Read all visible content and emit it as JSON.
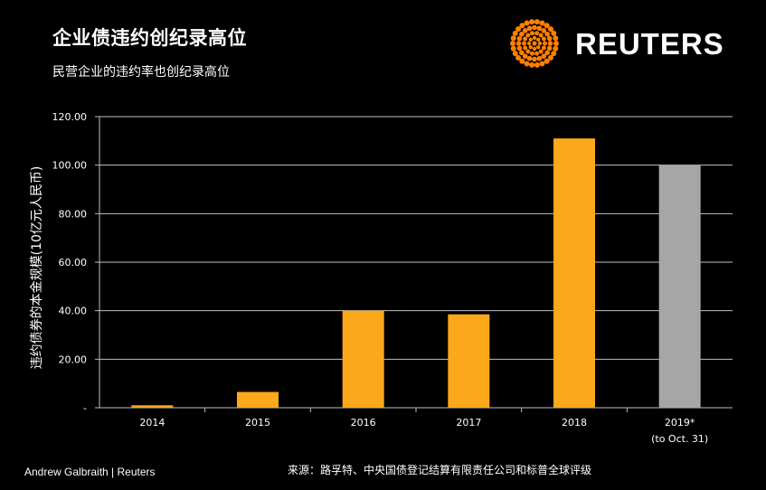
{
  "header": {
    "title": "企业债违约创纪录高位",
    "subtitle": "民营企业的违约率也创纪录高位"
  },
  "brand": {
    "name": "REUTERS",
    "logo_icon": "reuters-dot-logo-icon",
    "logo_color": "#ff8000"
  },
  "footer": {
    "credit": "Andrew Galbraith | Reuters",
    "source": "来源：路孚特、中央国债登记结算有限责任公司和标普全球评级"
  },
  "chart_data": {
    "type": "bar",
    "categories": [
      "2014",
      "2015",
      "2016",
      "2017",
      "2018",
      "2019*"
    ],
    "category_notes": [
      "",
      "",
      "",
      "",
      "",
      "(to Oct. 31)"
    ],
    "values": [
      1.0,
      6.5,
      40.0,
      38.5,
      111.0,
      100.0
    ],
    "bar_colors": [
      "#fca81b",
      "#fca81b",
      "#fca81b",
      "#fca81b",
      "#fca81b",
      "#a6a6a6"
    ],
    "ylabel": "违约债券的本金规模(10亿元人民币)",
    "xlabel": "",
    "ylim": [
      0,
      120
    ],
    "yticks": [
      0,
      20,
      40,
      60,
      80,
      100,
      120
    ],
    "ytick_labels": [
      "-",
      "20.00",
      "40.00",
      "60.00",
      "80.00",
      "100.00",
      "120.00"
    ],
    "grid": true,
    "gridline_color": "#bfbfbf"
  }
}
